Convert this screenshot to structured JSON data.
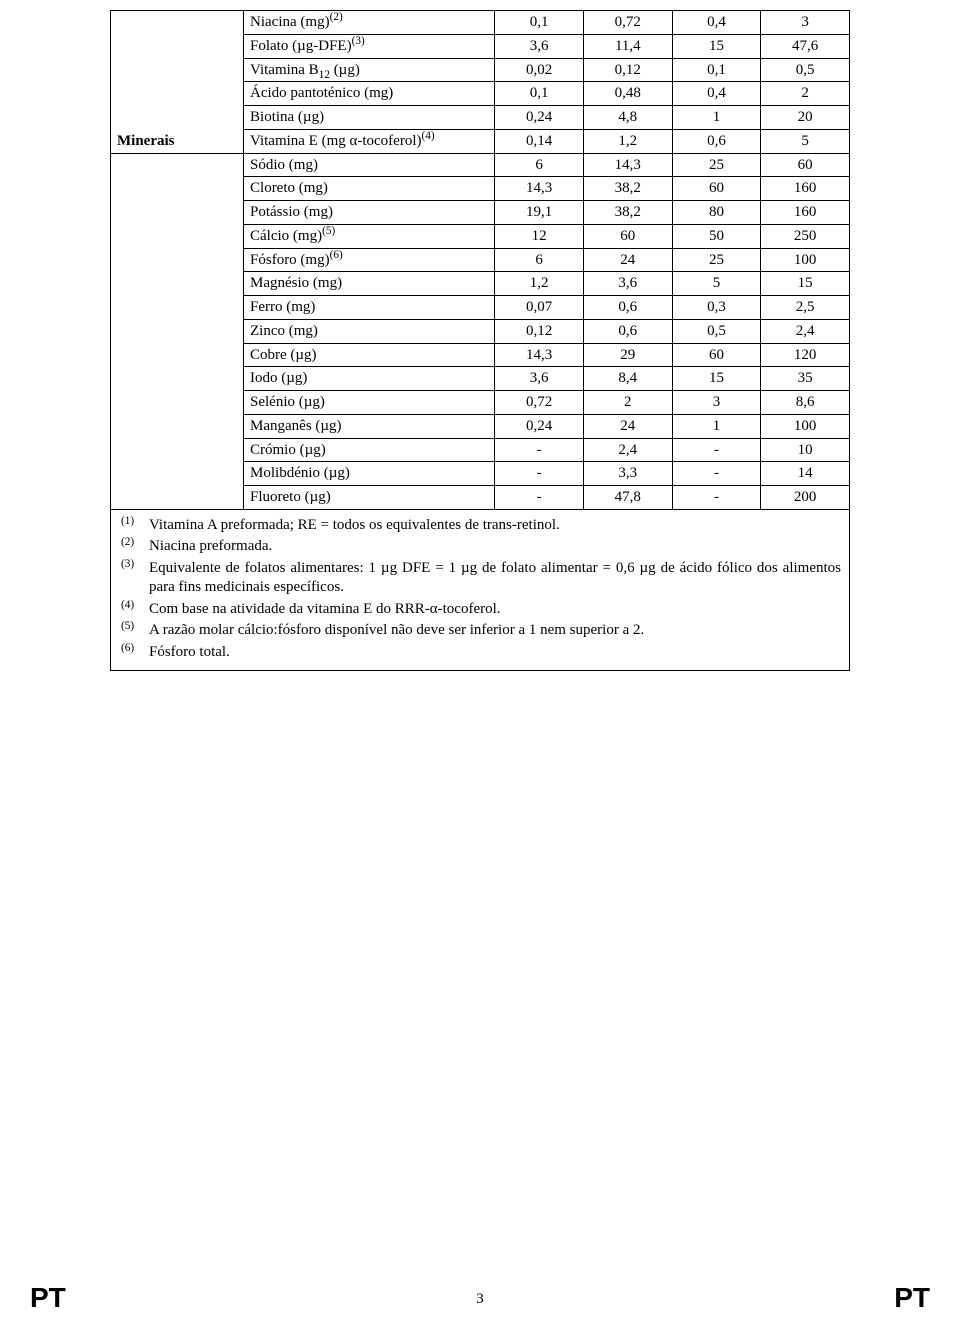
{
  "table": {
    "section_label": "Minerais",
    "rows": [
      {
        "name_html": "Niacina (mg)<span class='sup'>(2)</span>",
        "v1": "0,1",
        "v2": "0,72",
        "v3": "0,4",
        "v4": "3"
      },
      {
        "name_html": "Folato (µg-DFE)<span class='sup'>(3)</span>",
        "v1": "3,6",
        "v2": "11,4",
        "v3": "15",
        "v4": "47,6"
      },
      {
        "name_html": "Vitamina B<span class='sub'>12</span> (µg)",
        "v1": "0,02",
        "v2": "0,12",
        "v3": "0,1",
        "v4": "0,5"
      },
      {
        "name_html": "Ácido pantoténico (mg)",
        "v1": "0,1",
        "v2": "0,48",
        "v3": "0,4",
        "v4": "2"
      },
      {
        "name_html": "Biotina (µg)",
        "v1": "0,24",
        "v2": "4,8",
        "v3": "1",
        "v4": "20"
      },
      {
        "name_html": "Vitamina E (mg α-tocoferol)<span class='sup'>(4)</span>",
        "v1": "0,14",
        "v2": "1,2",
        "v3": "0,6",
        "v4": "5"
      }
    ],
    "rows2": [
      {
        "name_html": "Sódio (mg)",
        "v1": "6",
        "v2": "14,3",
        "v3": "25",
        "v4": "60"
      },
      {
        "name_html": "Cloreto (mg)",
        "v1": "14,3",
        "v2": "38,2",
        "v3": "60",
        "v4": "160"
      },
      {
        "name_html": "Potássio (mg)",
        "v1": "19,1",
        "v2": "38,2",
        "v3": "80",
        "v4": "160"
      },
      {
        "name_html": "Cálcio (mg)<span class='sup'>(5)</span>",
        "v1": "12",
        "v2": "60",
        "v3": "50",
        "v4": "250"
      },
      {
        "name_html": "Fósforo (mg)<span class='sup'>(6)</span>",
        "v1": "6",
        "v2": "24",
        "v3": "25",
        "v4": "100"
      },
      {
        "name_html": "Magnésio (mg)",
        "v1": "1,2",
        "v2": "3,6",
        "v3": "5",
        "v4": "15"
      },
      {
        "name_html": "Ferro (mg)",
        "v1": "0,07",
        "v2": "0,6",
        "v3": "0,3",
        "v4": "2,5"
      },
      {
        "name_html": "Zinco (mg)",
        "v1": "0,12",
        "v2": "0,6",
        "v3": "0,5",
        "v4": "2,4"
      },
      {
        "name_html": "Cobre (µg)",
        "v1": "14,3",
        "v2": "29",
        "v3": "60",
        "v4": "120"
      },
      {
        "name_html": "Iodo (µg)",
        "v1": "3,6",
        "v2": "8,4",
        "v3": "15",
        "v4": "35"
      },
      {
        "name_html": "Selénio (µg)",
        "v1": "0,72",
        "v2": "2",
        "v3": "3",
        "v4": "8,6"
      },
      {
        "name_html": "Manganês (µg)",
        "v1": "0,24",
        "v2": "24",
        "v3": "1",
        "v4": "100"
      },
      {
        "name_html": "Crómio (µg)",
        "v1": "-",
        "v2": "2,4",
        "v3": "-",
        "v4": "10"
      },
      {
        "name_html": "Molibdénio (µg)",
        "v1": "-",
        "v2": "3,3",
        "v3": "-",
        "v4": "14"
      },
      {
        "name_html": "Fluoreto (µg)",
        "v1": "-",
        "v2": "47,8",
        "v3": "-",
        "v4": "200"
      }
    ]
  },
  "footnotes": [
    {
      "mark": "(1)",
      "text": "Vitamina A preformada; RE = todos os equivalentes de trans-retinol."
    },
    {
      "mark": "(2)",
      "text": "Niacina preformada."
    },
    {
      "mark": "(3)",
      "text": "Equivalente de folatos alimentares: 1 µg DFE = 1 µg de folato alimentar = 0,6 µg de ácido fólico dos alimentos para fins medicinais específicos."
    },
    {
      "mark": "(4)",
      "text": "Com base na atividade da vitamina E do RRR-α-tocoferol."
    },
    {
      "mark": "(5)",
      "text": "A razão molar cálcio:fósforo disponível não deve ser inferior a 1 nem superior a 2."
    },
    {
      "mark": "(6)",
      "text": "Fósforo total."
    }
  ],
  "footer": {
    "page_number": "3",
    "lang_left": "PT",
    "lang_right": "PT"
  }
}
